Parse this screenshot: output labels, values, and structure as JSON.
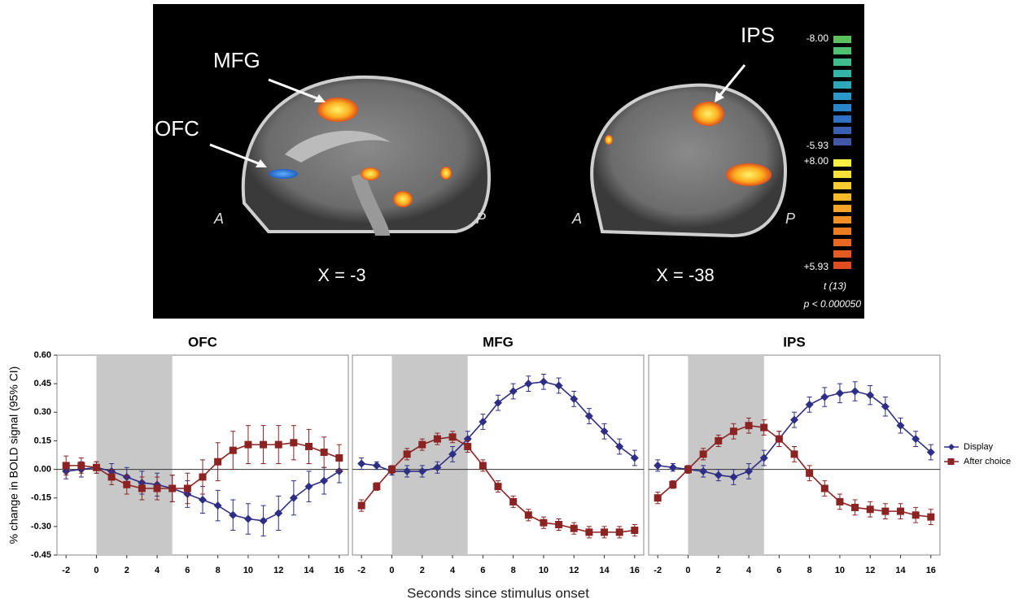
{
  "brain_panel": {
    "left": {
      "labels": [
        "MFG",
        "OFC"
      ],
      "anterior": "A",
      "posterior": "P",
      "slice": "X = -3"
    },
    "right": {
      "labels": [
        "IPS"
      ],
      "anterior": "A",
      "posterior": "P",
      "slice": "X = -38"
    },
    "colorbar": {
      "neg_max": "-8.00",
      "neg_min": "-5.93",
      "pos_max": "+8.00",
      "pos_min": "+5.93",
      "stat": "t (13)",
      "threshold": "p < 0.000050"
    }
  },
  "figure": {
    "ylabel": "% change in BOLD signal (95% CI)",
    "xlabel": "Seconds since stimulus onset"
  },
  "chart_data": [
    {
      "type": "line",
      "title": "OFC",
      "xlim": [
        -2.6,
        16.6
      ],
      "ylim": [
        -0.45,
        0.6
      ],
      "xticks": [
        -2,
        0,
        2,
        4,
        6,
        8,
        10,
        12,
        14,
        16
      ],
      "yticks": [
        {
          "value": 0.6,
          "label": "0.60"
        },
        {
          "value": 0.45,
          "label": "0.45"
        },
        {
          "value": 0.3,
          "label": "0.30"
        },
        {
          "value": 0.15,
          "label": "0.15"
        },
        {
          "value": 0,
          "label": "0.00"
        },
        {
          "value": -0.15,
          "label": "-0.15"
        },
        {
          "value": -0.3,
          "label": "-0.30"
        },
        {
          "value": -0.45,
          "label": "-0.45"
        }
      ],
      "shaded_span": [
        0,
        5
      ],
      "x": [
        -2,
        -1,
        0,
        1,
        2,
        3,
        4,
        5,
        6,
        7,
        8,
        9,
        10,
        11,
        12,
        13,
        14,
        15,
        16
      ],
      "series": [
        {
          "color": "#2e2e86",
          "marker": "diamond",
          "values": [
            -0.01,
            0.0,
            0.01,
            -0.01,
            -0.04,
            -0.07,
            -0.08,
            -0.1,
            -0.13,
            -0.16,
            -0.19,
            -0.24,
            -0.26,
            -0.27,
            -0.23,
            -0.15,
            -0.09,
            -0.06,
            -0.01
          ],
          "errors": [
            0.04,
            0.04,
            0.03,
            0.04,
            0.05,
            0.06,
            0.06,
            0.07,
            0.07,
            0.07,
            0.08,
            0.08,
            0.08,
            0.08,
            0.09,
            0.09,
            0.08,
            0.07,
            0.06
          ]
        },
        {
          "color": "#8b2323",
          "marker": "square",
          "values": [
            0.02,
            0.02,
            0.01,
            -0.04,
            -0.08,
            -0.1,
            -0.1,
            -0.1,
            -0.1,
            -0.04,
            0.04,
            0.1,
            0.13,
            0.13,
            0.13,
            0.14,
            0.12,
            0.09,
            0.06
          ],
          "errors": [
            0.05,
            0.04,
            0.03,
            0.04,
            0.05,
            0.06,
            0.06,
            0.07,
            0.08,
            0.09,
            0.1,
            0.1,
            0.1,
            0.1,
            0.1,
            0.09,
            0.09,
            0.08,
            0.07
          ]
        }
      ]
    },
    {
      "type": "line",
      "title": "MFG",
      "xlim": [
        -2.6,
        16.6
      ],
      "ylim": [
        -0.45,
        0.6
      ],
      "xticks": [
        -2,
        0,
        2,
        4,
        6,
        8,
        10,
        12,
        14,
        16
      ],
      "shaded_span": [
        0,
        5
      ],
      "x": [
        -2,
        -1,
        0,
        1,
        2,
        3,
        4,
        5,
        6,
        7,
        8,
        9,
        10,
        11,
        12,
        13,
        14,
        15,
        16
      ],
      "series": [
        {
          "color": "#2e2e86",
          "marker": "diamond",
          "values": [
            0.03,
            0.02,
            -0.01,
            -0.01,
            -0.01,
            0.01,
            0.08,
            0.16,
            0.25,
            0.35,
            0.41,
            0.45,
            0.46,
            0.44,
            0.37,
            0.28,
            0.2,
            0.12,
            0.06
          ],
          "errors": [
            0.03,
            0.02,
            0.02,
            0.03,
            0.03,
            0.03,
            0.04,
            0.04,
            0.04,
            0.04,
            0.04,
            0.04,
            0.04,
            0.04,
            0.04,
            0.04,
            0.04,
            0.04,
            0.04
          ]
        },
        {
          "color": "#8b2323",
          "marker": "square",
          "values": [
            -0.19,
            -0.09,
            0.0,
            0.08,
            0.13,
            0.16,
            0.17,
            0.12,
            0.02,
            -0.09,
            -0.17,
            -0.24,
            -0.28,
            -0.29,
            -0.31,
            -0.33,
            -0.33,
            -0.33,
            -0.32
          ],
          "errors": [
            0.03,
            0.02,
            0.02,
            0.03,
            0.03,
            0.03,
            0.03,
            0.03,
            0.03,
            0.03,
            0.03,
            0.03,
            0.03,
            0.03,
            0.03,
            0.03,
            0.03,
            0.03,
            0.03
          ]
        }
      ]
    },
    {
      "type": "line",
      "title": "IPS",
      "xlim": [
        -2.6,
        16.6
      ],
      "ylim": [
        -0.45,
        0.6
      ],
      "xticks": [
        -2,
        0,
        2,
        4,
        6,
        8,
        10,
        12,
        14,
        16
      ],
      "shaded_span": [
        0,
        5
      ],
      "legend": "right",
      "x": [
        -2,
        -1,
        0,
        1,
        2,
        3,
        4,
        5,
        6,
        7,
        8,
        9,
        10,
        11,
        12,
        13,
        14,
        15,
        16
      ],
      "series": [
        {
          "name": "Display",
          "color": "#2e2e86",
          "marker": "diamond",
          "values": [
            0.02,
            0.01,
            0.0,
            -0.01,
            -0.03,
            -0.04,
            -0.01,
            0.06,
            0.16,
            0.26,
            0.34,
            0.38,
            0.4,
            0.41,
            0.39,
            0.33,
            0.23,
            0.16,
            0.09
          ],
          "errors": [
            0.03,
            0.02,
            0.02,
            0.03,
            0.03,
            0.04,
            0.04,
            0.04,
            0.04,
            0.04,
            0.04,
            0.05,
            0.05,
            0.05,
            0.05,
            0.05,
            0.04,
            0.04,
            0.04
          ]
        },
        {
          "name": "After choice",
          "color": "#8b2323",
          "marker": "square",
          "values": [
            -0.15,
            -0.08,
            0.0,
            0.08,
            0.15,
            0.2,
            0.23,
            0.22,
            0.16,
            0.08,
            -0.02,
            -0.1,
            -0.17,
            -0.2,
            -0.21,
            -0.22,
            -0.22,
            -0.24,
            -0.25
          ],
          "errors": [
            0.03,
            0.02,
            0.02,
            0.03,
            0.03,
            0.04,
            0.04,
            0.04,
            0.04,
            0.04,
            0.04,
            0.04,
            0.04,
            0.04,
            0.04,
            0.04,
            0.04,
            0.04,
            0.04
          ]
        }
      ]
    }
  ]
}
